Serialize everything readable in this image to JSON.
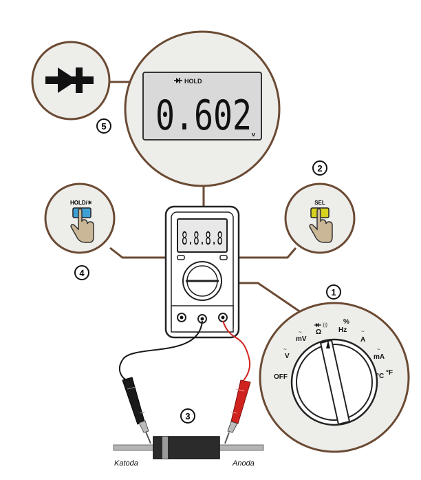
{
  "zoom_display": {
    "hold_label": "HOLD",
    "reading": "0.602",
    "unit": "v"
  },
  "meter": {
    "display": "8.8.8.8"
  },
  "buttons": {
    "hold": {
      "label": "HOLD/☀"
    },
    "sel": {
      "label": "SEL"
    }
  },
  "step_numbers": {
    "dial": "1",
    "sel": "2",
    "probes": "3",
    "hold": "4",
    "display": "5"
  },
  "dial": {
    "labels": [
      "OFF",
      "V",
      "mV",
      "Ω",
      "%",
      "Hz",
      "A",
      "mA",
      "°C",
      "°F"
    ]
  },
  "diode": {
    "cathode_label": "Katoda",
    "anode_label": "Anoda"
  },
  "colors": {
    "line": "#6b4a33",
    "circle_fill": "#ededea",
    "circle_stroke": "#6b4a33",
    "lcd_bg": "#d9d9d9",
    "hand": "#c9b797",
    "hold_button": "#3fa0d6",
    "sel_button": "#d6d21e",
    "probe_red": "#d0231f",
    "probe_black": "#1a1a1a",
    "diode_body": "#2b2b2b"
  }
}
